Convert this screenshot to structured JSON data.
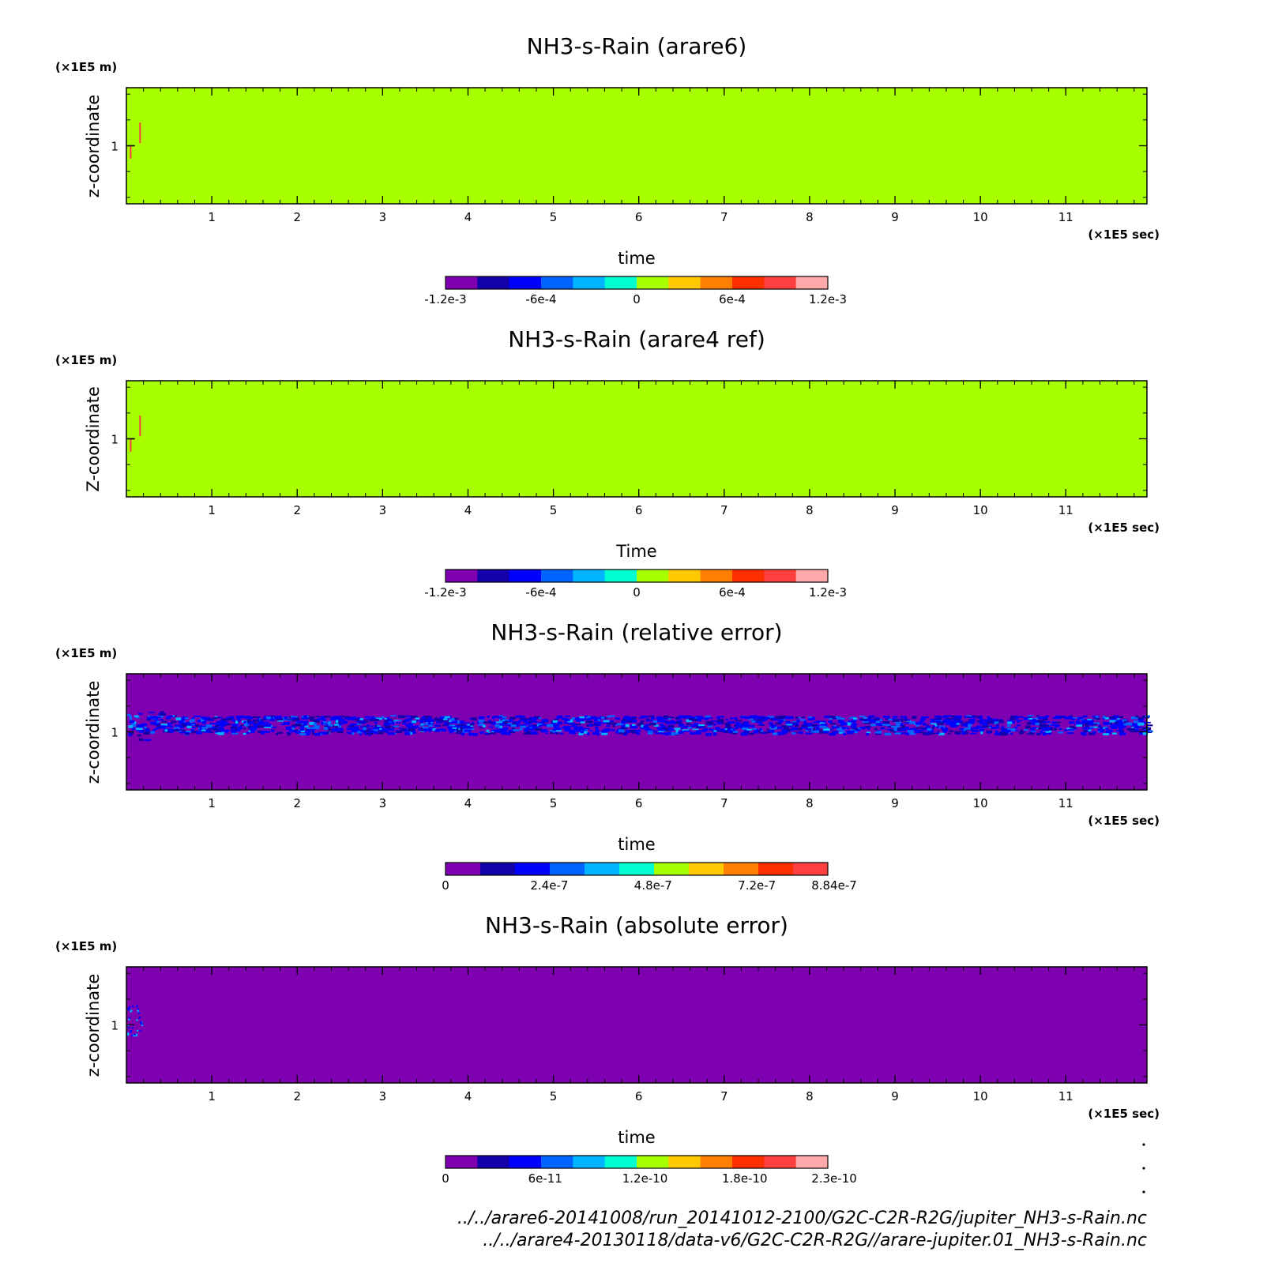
{
  "chart_data": [
    {
      "type": "heatmap",
      "title": "NH3-s-Rain (arare6)",
      "xlabel": "time",
      "ylabel": "z-coordinate",
      "x_unit": "(×1E5 sec)",
      "y_unit": "(×1E5 m)",
      "x_ticks": [
        "1",
        "2",
        "3",
        "4",
        "5",
        "6",
        "7",
        "8",
        "9",
        "10",
        "11"
      ],
      "xlim": [
        0,
        11.95
      ],
      "y_ticks": [
        "1"
      ],
      "ylim": [
        0.55,
        1.45
      ],
      "field": "uniform ~0 with small positive/negative features near t=0, z=1",
      "colorbar": {
        "colors": [
          "#7f00b0",
          "#1400a8",
          "#0000ff",
          "#0064ff",
          "#00b4ff",
          "#00ffd0",
          "#a8ff00",
          "#ffc800",
          "#ff8000",
          "#ff3000",
          "#ff4040",
          "#ffaaaa"
        ],
        "tick_labels": [
          "-1.2e-3",
          "-6e-4",
          "0",
          "6e-4",
          "1.2e-3"
        ],
        "range": [
          -0.0012,
          0.0012
        ]
      },
      "background_color": "#a8ff00",
      "pattern": "none"
    },
    {
      "type": "heatmap",
      "title": "NH3-s-Rain (arare4 ref)",
      "xlabel": "Time",
      "ylabel": "Z-coordinate",
      "x_unit": "(×1E5 sec)",
      "y_unit": "(×1E5 m)",
      "x_ticks": [
        "1",
        "2",
        "3",
        "4",
        "5",
        "6",
        "7",
        "8",
        "9",
        "10",
        "11"
      ],
      "xlim": [
        0,
        11.95
      ],
      "y_ticks": [
        "1"
      ],
      "ylim": [
        0.55,
        1.45
      ],
      "field": "uniform ~0 with small positive/negative features near t=0, z=1",
      "colorbar": {
        "colors": [
          "#7f00b0",
          "#1400a8",
          "#0000ff",
          "#0064ff",
          "#00b4ff",
          "#00ffd0",
          "#a8ff00",
          "#ffc800",
          "#ff8000",
          "#ff3000",
          "#ff4040",
          "#ffaaaa"
        ],
        "tick_labels": [
          "-1.2e-3",
          "-6e-4",
          "0",
          "6e-4",
          "1.2e-3"
        ],
        "range": [
          -0.0012,
          0.0012
        ]
      },
      "background_color": "#a8ff00",
      "pattern": "none"
    },
    {
      "type": "heatmap",
      "title": "NH3-s-Rain (relative error)",
      "xlabel": "time",
      "ylabel": "z-coordinate",
      "x_unit": "(×1E5 sec)",
      "y_unit": "(×1E5 m)",
      "x_ticks": [
        "1",
        "2",
        "3",
        "4",
        "5",
        "6",
        "7",
        "8",
        "9",
        "10",
        "11"
      ],
      "xlim": [
        0,
        11.95
      ],
      "y_ticks": [
        "1"
      ],
      "ylim": [
        0.55,
        1.45
      ],
      "field": "mostly 0; noisy band of small errors around z=1.0 to 1.15 across all times",
      "colorbar": {
        "colors": [
          "#7f00b0",
          "#1400a8",
          "#0000ff",
          "#0064ff",
          "#00b4ff",
          "#00ffd0",
          "#a8ff00",
          "#ffc800",
          "#ff8000",
          "#ff3000",
          "#ff4040"
        ],
        "tick_labels": [
          "0",
          "2.4e-7",
          "4.8e-7",
          "7.2e-7",
          "8.84e-7"
        ],
        "range": [
          0,
          8.84e-07
        ]
      },
      "background_color": "#7f00b0",
      "pattern": "band"
    },
    {
      "type": "heatmap",
      "title": "NH3-s-Rain (absolute error)",
      "xlabel": "time",
      "ylabel": "z-coordinate",
      "x_unit": "(×1E5 sec)",
      "y_unit": "(×1E5 m)",
      "x_ticks": [
        "1",
        "2",
        "3",
        "4",
        "5",
        "6",
        "7",
        "8",
        "9",
        "10",
        "11"
      ],
      "xlim": [
        0,
        11.95
      ],
      "y_ticks": [
        "1"
      ],
      "ylim": [
        0.55,
        1.45
      ],
      "field": "mostly 0; small errors near t=0, z=1",
      "colorbar": {
        "colors": [
          "#7f00b0",
          "#1400a8",
          "#0000ff",
          "#0064ff",
          "#00b4ff",
          "#00ffd0",
          "#a8ff00",
          "#ffc800",
          "#ff8000",
          "#ff3000",
          "#ff4040",
          "#ffaaaa"
        ],
        "tick_labels": [
          "0",
          "6e-11",
          "1.2e-10",
          "1.8e-10",
          "2.3e-10"
        ],
        "range": [
          0,
          2.3e-10
        ]
      },
      "background_color": "#7f00b0",
      "pattern": "spot"
    }
  ],
  "footer": {
    "line1": "../../arare6-20141008/run_20141012-2100/G2C-C2R-R2G/jupiter_NH3-s-Rain.nc",
    "line2": "../../arare4-20130118/data-v6/G2C-C2R-R2G//arare-jupiter.01_NH3-s-Rain.nc"
  }
}
